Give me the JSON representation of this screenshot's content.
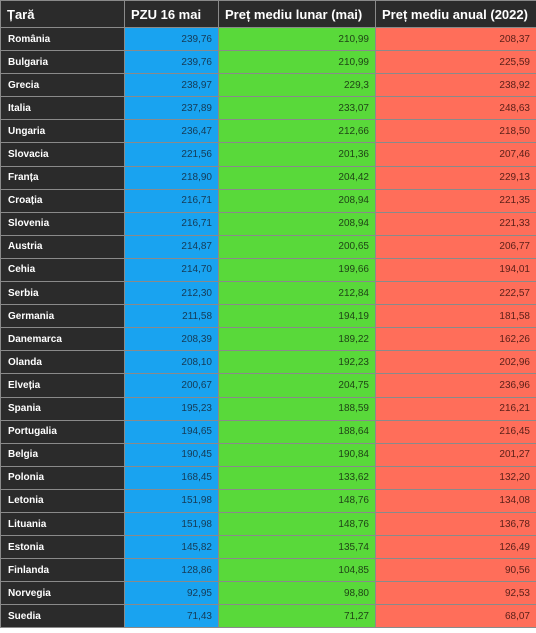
{
  "table": {
    "headers": [
      "Țară",
      "PZU 16 mai",
      "Preț mediu lunar (mai)",
      "Preț mediu anual (2022)"
    ],
    "colors": {
      "country": "#2b2b2b",
      "pzu": "#19a3f0",
      "monthly": "#59d93a",
      "annual": "#ff6e5a"
    },
    "rows": [
      [
        "România",
        "239,76",
        "210,99",
        "208,37"
      ],
      [
        "Bulgaria",
        "239,76",
        "210,99",
        "225,59"
      ],
      [
        "Grecia",
        "238,97",
        "229,3",
        "238,92"
      ],
      [
        "Italia",
        "237,89",
        "233,07",
        "248,63"
      ],
      [
        "Ungaria",
        "236,47",
        "212,66",
        "218,50"
      ],
      [
        "Slovacia",
        "221,56",
        "201,36",
        "207,46"
      ],
      [
        "Franța",
        "218,90",
        "204,42",
        "229,13"
      ],
      [
        "Croația",
        "216,71",
        "208,94",
        "221,35"
      ],
      [
        "Slovenia",
        "216,71",
        "208,94",
        "221,33"
      ],
      [
        "Austria",
        "214,87",
        "200,65",
        "206,77"
      ],
      [
        "Cehia",
        "214,70",
        "199,66",
        "194,01"
      ],
      [
        "Serbia",
        "212,30",
        "212,84",
        "222,57"
      ],
      [
        "Germania",
        "211,58",
        "194,19",
        "181,58"
      ],
      [
        "Danemarca",
        "208,39",
        "189,22",
        "162,26"
      ],
      [
        "Olanda",
        "208,10",
        "192,23",
        "202,96"
      ],
      [
        "Elveția",
        "200,67",
        "204,75",
        "236,96"
      ],
      [
        "Spania",
        "195,23",
        "188,59",
        "216,21"
      ],
      [
        "Portugalia",
        "194,65",
        "188,64",
        "216,45"
      ],
      [
        "Belgia",
        "190,45",
        "190,84",
        "201,27"
      ],
      [
        "Polonia",
        "168,45",
        "133,62",
        "132,20"
      ],
      [
        "Letonia",
        "151,98",
        "148,76",
        "134,08"
      ],
      [
        "Lituania",
        "151,98",
        "148,76",
        "136,78"
      ],
      [
        "Estonia",
        "145,82",
        "135,74",
        "126,49"
      ],
      [
        "Finlanda",
        "128,86",
        "104,85",
        "90,56"
      ],
      [
        "Norvegia",
        "92,95",
        "98,80",
        "92,53"
      ],
      [
        "Suedia",
        "71,43",
        "71,27",
        "68,07"
      ]
    ]
  }
}
